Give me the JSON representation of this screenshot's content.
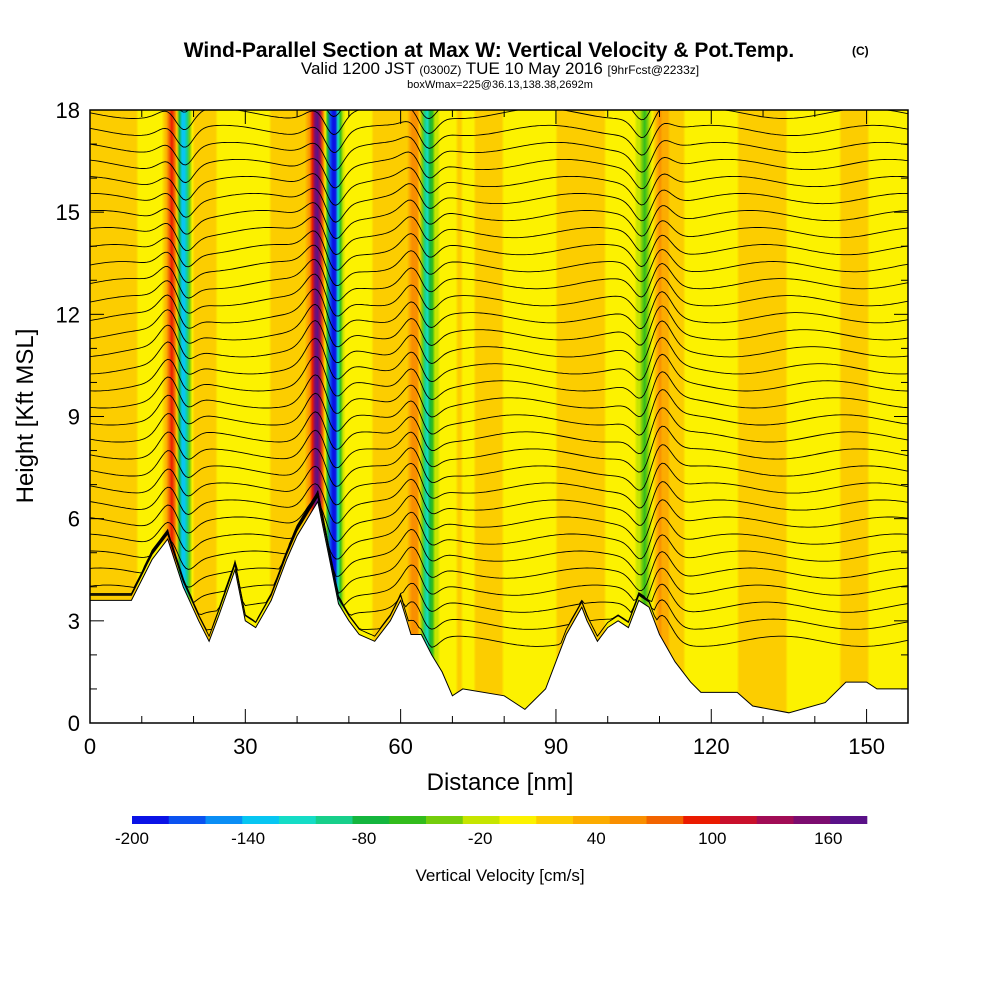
{
  "title": "Wind-Parallel Section at Max W: Vertical Velocity & Pot.Temp.",
  "copyright": "(C)",
  "valid_prefix": "Valid 1200 JST",
  "valid_z": "(0300Z)",
  "valid_date": "TUE 10 May 2016",
  "fcst": "[9hrFcst@2233z]",
  "box_info": "boxWmax=225@36.13,138.38,2692m",
  "chart_data": {
    "type": "heatmap",
    "title": "Wind-Parallel Section at Max W: Vertical Velocity & Pot.Temp.",
    "xlabel": "Distance [nm]",
    "ylabel": "Height [Kft MSL]",
    "xlim": [
      0,
      158
    ],
    "ylim": [
      0,
      18
    ],
    "x_ticks": [
      0,
      30,
      60,
      90,
      120,
      150
    ],
    "y_ticks": [
      0,
      3,
      6,
      9,
      12,
      15,
      18
    ],
    "colorbar": {
      "label": "Vertical Velocity [cm/s]",
      "tick_labels": [
        -200,
        -140,
        -80,
        -20,
        40,
        100,
        160
      ],
      "range": [
        -200,
        180
      ],
      "step": 20,
      "colors": [
        "#0a12e6",
        "#0b52f0",
        "#0a8ef5",
        "#07c6f2",
        "#15dcc6",
        "#17cf8a",
        "#14b63e",
        "#32bc1c",
        "#74cd0c",
        "#c6e500",
        "#fcf200",
        "#fccd00",
        "#fcac00",
        "#f98f00",
        "#f26400",
        "#ea1b00",
        "#c9102b",
        "#a10c55",
        "#7c0c6f",
        "#5a1188"
      ]
    },
    "terrain_kft": [
      [
        0,
        3.6
      ],
      [
        8,
        3.6
      ],
      [
        12,
        4.8
      ],
      [
        15,
        5.4
      ],
      [
        18,
        4.0
      ],
      [
        21,
        3.0
      ],
      [
        23,
        2.4
      ],
      [
        25,
        3.2
      ],
      [
        28,
        4.5
      ],
      [
        30,
        3.0
      ],
      [
        32,
        2.8
      ],
      [
        35,
        3.6
      ],
      [
        38,
        4.8
      ],
      [
        40,
        5.5
      ],
      [
        42,
        6.0
      ],
      [
        44,
        6.5
      ],
      [
        46,
        5.0
      ],
      [
        48,
        3.5
      ],
      [
        50,
        3.0
      ],
      [
        52,
        2.6
      ],
      [
        55,
        2.4
      ],
      [
        58,
        3.0
      ],
      [
        60,
        3.6
      ],
      [
        62,
        2.6
      ],
      [
        64,
        2.6
      ],
      [
        66,
        2.0
      ],
      [
        68,
        1.5
      ],
      [
        70,
        0.8
      ],
      [
        72,
        1.0
      ],
      [
        80,
        0.8
      ],
      [
        84,
        0.4
      ],
      [
        88,
        1.0
      ],
      [
        90,
        1.8
      ],
      [
        92,
        2.6
      ],
      [
        95,
        3.4
      ],
      [
        96,
        3.0
      ],
      [
        98,
        2.4
      ],
      [
        100,
        2.8
      ],
      [
        102,
        3.0
      ],
      [
        104,
        2.8
      ],
      [
        106,
        3.6
      ],
      [
        108,
        3.4
      ],
      [
        110,
        2.6
      ],
      [
        113,
        1.8
      ],
      [
        116,
        1.2
      ],
      [
        118,
        0.9
      ],
      [
        125,
        0.9
      ],
      [
        128,
        0.5
      ],
      [
        135,
        0.3
      ],
      [
        142,
        0.6
      ],
      [
        146,
        1.2
      ],
      [
        150,
        1.2
      ],
      [
        152,
        1.0
      ],
      [
        158,
        1.0
      ]
    ],
    "updrafts": [
      {
        "x_nm": 16,
        "peak_cm_s": 120
      },
      {
        "x_nm": 44,
        "peak_cm_s": 180
      },
      {
        "x_nm": 63,
        "peak_cm_s": 80
      },
      {
        "x_nm": 110,
        "peak_cm_s": 60
      }
    ],
    "downdrafts": [
      {
        "x_nm": 18,
        "min_cm_s": -140
      },
      {
        "x_nm": 47,
        "min_cm_s": -200
      },
      {
        "x_nm": 65,
        "min_cm_s": -100
      },
      {
        "x_nm": 107,
        "min_cm_s": -40
      }
    ],
    "isentropes_count": 34
  }
}
